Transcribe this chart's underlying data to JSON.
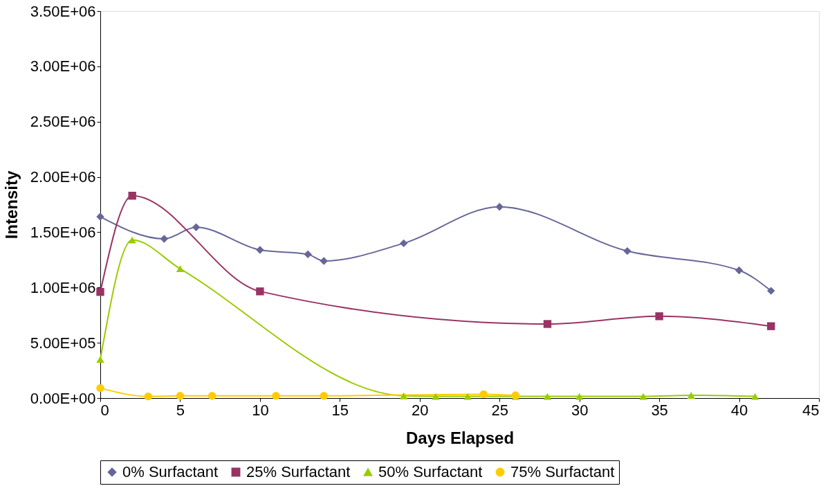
{
  "chart_data": {
    "type": "line",
    "xlabel": "Days Elapsed",
    "ylabel": "Intensity",
    "xlim": [
      0,
      45
    ],
    "xticks": [
      0,
      5,
      10,
      15,
      20,
      25,
      30,
      35,
      40,
      45
    ],
    "ylim": [
      0,
      3500000
    ],
    "yticks": [
      {
        "value": 0,
        "label": "0.00E+00"
      },
      {
        "value": 500000,
        "label": "5.00E+05"
      },
      {
        "value": 1000000,
        "label": "1.00E+06"
      },
      {
        "value": 1500000,
        "label": "1.50E+06"
      },
      {
        "value": 2000000,
        "label": "2.00E+06"
      },
      {
        "value": 2500000,
        "label": "2.50E+06"
      },
      {
        "value": 3000000,
        "label": "3.00E+06"
      },
      {
        "value": 3500000,
        "label": "3.50E+06"
      }
    ],
    "grid": false,
    "legend": "bottom",
    "line_style": "solid",
    "series": [
      {
        "name": "0% Surfactant",
        "color": "#666699",
        "marker": "diamond",
        "x": [
          0,
          4,
          6,
          10,
          13,
          14,
          19,
          25,
          33,
          40,
          42
        ],
        "values": [
          1640000,
          1440000,
          1545000,
          1340000,
          1300000,
          1240000,
          1400000,
          1730000,
          1330000,
          1155000,
          970000
        ]
      },
      {
        "name": "25% Surfactant",
        "color": "#993366",
        "marker": "square",
        "x": [
          0,
          2,
          10,
          28,
          35,
          42
        ],
        "values": [
          960000,
          1830000,
          965000,
          670000,
          740000,
          650000
        ]
      },
      {
        "name": "50% Surfactant",
        "color": "#99cc00",
        "marker": "triangle",
        "x": [
          0,
          2,
          5,
          19,
          21,
          23,
          26,
          28,
          30,
          34,
          37,
          41
        ],
        "values": [
          350000,
          1430000,
          1170000,
          20000,
          15000,
          15000,
          15000,
          15000,
          15000,
          15000,
          25000,
          15000
        ]
      },
      {
        "name": "75% Surfactant",
        "color": "#ffcc00",
        "marker": "circle",
        "x": [
          0,
          3,
          5,
          7,
          11,
          14,
          24,
          26
        ],
        "values": [
          90000,
          15000,
          20000,
          20000,
          20000,
          20000,
          35000,
          25000
        ]
      }
    ]
  }
}
